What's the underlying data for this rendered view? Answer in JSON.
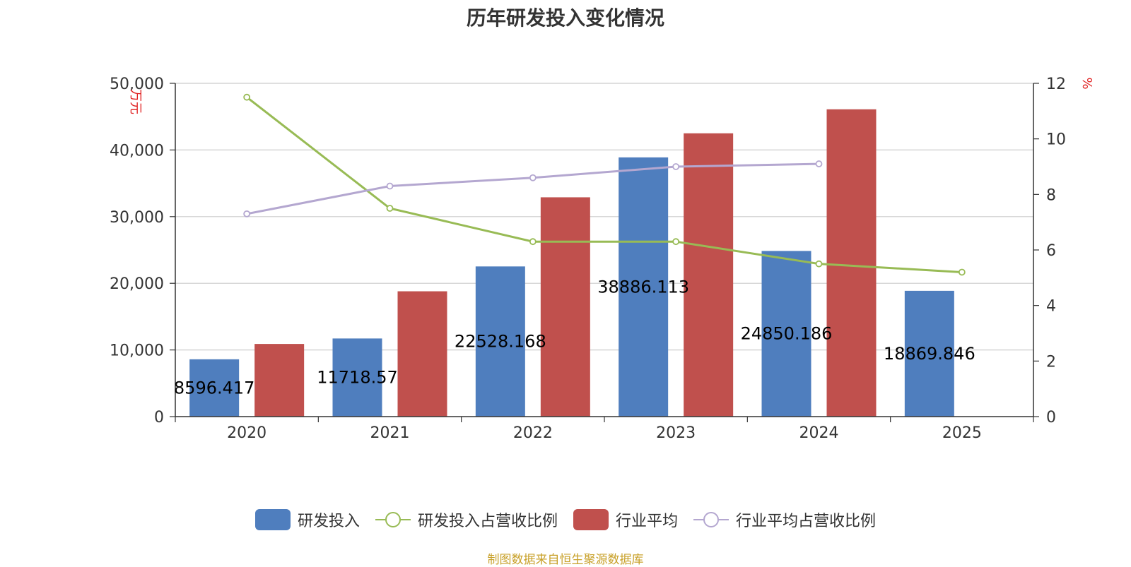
{
  "colors": {
    "rd_spend": "#4f7ebe",
    "rd_ratio": "#98bb55",
    "industry_avg": "#c0504d",
    "industry_ratio": "#b4a7d0",
    "unit_text": "#e02020",
    "source_text": "#c8a028"
  },
  "chart_data": {
    "type": "bar",
    "title": "历年研发投入变化情况",
    "categories": [
      "2020",
      "2021",
      "2022",
      "2023",
      "2024",
      "2025"
    ],
    "left_axis": {
      "unit": "万元",
      "ylim": [
        0,
        50000
      ],
      "ticks": [
        0,
        10000,
        20000,
        30000,
        40000,
        50000
      ],
      "tick_labels": [
        "0",
        "10,000",
        "20,000",
        "30,000",
        "40,000",
        "50,000"
      ]
    },
    "right_axis": {
      "unit": "%",
      "ylim": [
        0,
        12
      ],
      "ticks": [
        0,
        2,
        4,
        6,
        8,
        10,
        12
      ],
      "tick_labels": [
        "0",
        "2",
        "4",
        "6",
        "8",
        "10",
        "12"
      ]
    },
    "grid": true,
    "legend_position": "bottom",
    "series": [
      {
        "name": "研发投入",
        "kind": "bar",
        "axis": "left",
        "color": "#4f7ebe",
        "values": [
          8596.417,
          11718.57,
          22528.168,
          38886.113,
          24850.186,
          18869.846
        ],
        "labels": [
          "8596.417",
          "11718.57",
          "22528.168",
          "38886.113",
          "24850.186",
          "18869.846"
        ]
      },
      {
        "name": "研发投入占营收比例",
        "kind": "line",
        "axis": "right",
        "color": "#98bb55",
        "values": [
          11.5,
          7.5,
          6.3,
          6.3,
          5.5,
          5.2
        ]
      },
      {
        "name": "行业平均",
        "kind": "bar",
        "axis": "left",
        "color": "#c0504d",
        "values": [
          10900,
          18800,
          32900,
          42500,
          46100,
          null
        ]
      },
      {
        "name": "行业平均占营收比例",
        "kind": "line",
        "axis": "right",
        "color": "#b4a7d0",
        "values": [
          7.3,
          8.3,
          8.6,
          9.0,
          9.1,
          null
        ]
      }
    ]
  },
  "source": "制图数据来自恒生聚源数据库"
}
